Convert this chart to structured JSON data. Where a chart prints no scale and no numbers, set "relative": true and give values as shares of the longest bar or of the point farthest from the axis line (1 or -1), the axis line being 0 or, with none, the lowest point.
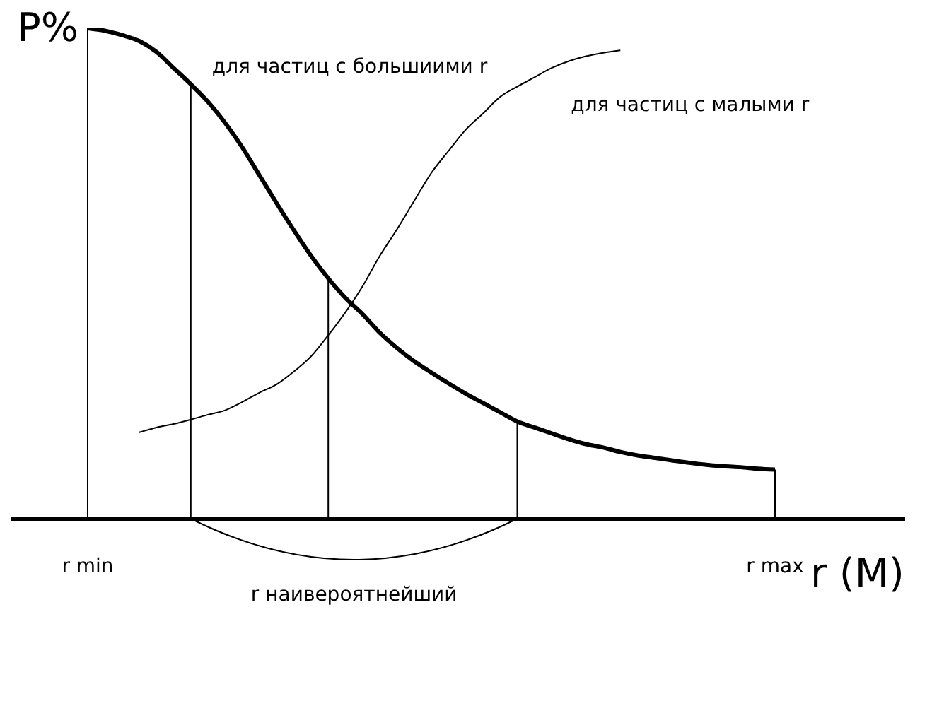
{
  "chart_data": {
    "type": "line",
    "relative": true,
    "xlabel": "r (M)",
    "ylabel": "P%",
    "categories": [
      "r min",
      null,
      null,
      null,
      null,
      null,
      null,
      null,
      null,
      null,
      null,
      null,
      null,
      null,
      null,
      null,
      null,
      null,
      null,
      null,
      null,
      null,
      null,
      null,
      null,
      null,
      null,
      null,
      null,
      null,
      null,
      null,
      null,
      null,
      null,
      null,
      null,
      null,
      null,
      null,
      "r max"
    ],
    "series": [
      {
        "name": "для частиц с большиими r",
        "color": "#000000",
        "values": [
          1.0,
          0.995,
          0.986,
          0.974,
          0.952,
          0.919,
          0.886,
          0.85,
          0.807,
          0.757,
          0.7,
          0.643,
          0.588,
          0.536,
          0.49,
          0.45,
          0.417,
          0.379,
          0.348,
          0.321,
          0.298,
          0.276,
          0.255,
          0.236,
          0.217,
          0.198,
          0.186,
          0.174,
          0.162,
          0.152,
          0.145,
          0.136,
          0.129,
          0.124,
          0.119,
          0.114,
          0.11,
          0.107,
          0.105,
          0.102,
          0.1
        ]
      },
      {
        "name": "для частиц с малыми r",
        "color": "#000000",
        "values": [
          null,
          null,
          null,
          0.176,
          0.186,
          0.193,
          0.202,
          0.212,
          0.221,
          0.238,
          0.257,
          0.274,
          0.3,
          0.331,
          0.374,
          0.421,
          0.474,
          0.536,
          0.59,
          0.648,
          0.705,
          0.75,
          0.793,
          0.826,
          0.86,
          0.881,
          0.9,
          0.919,
          0.933,
          0.943,
          0.95,
          0.955,
          null,
          null,
          null,
          null,
          null,
          null,
          null,
          null,
          null
        ]
      }
    ],
    "annotations": [
      "r наивероятнейший"
    ],
    "grid": "x",
    "legend": false,
    "marker": "none",
    "line_style": "solid"
  }
}
